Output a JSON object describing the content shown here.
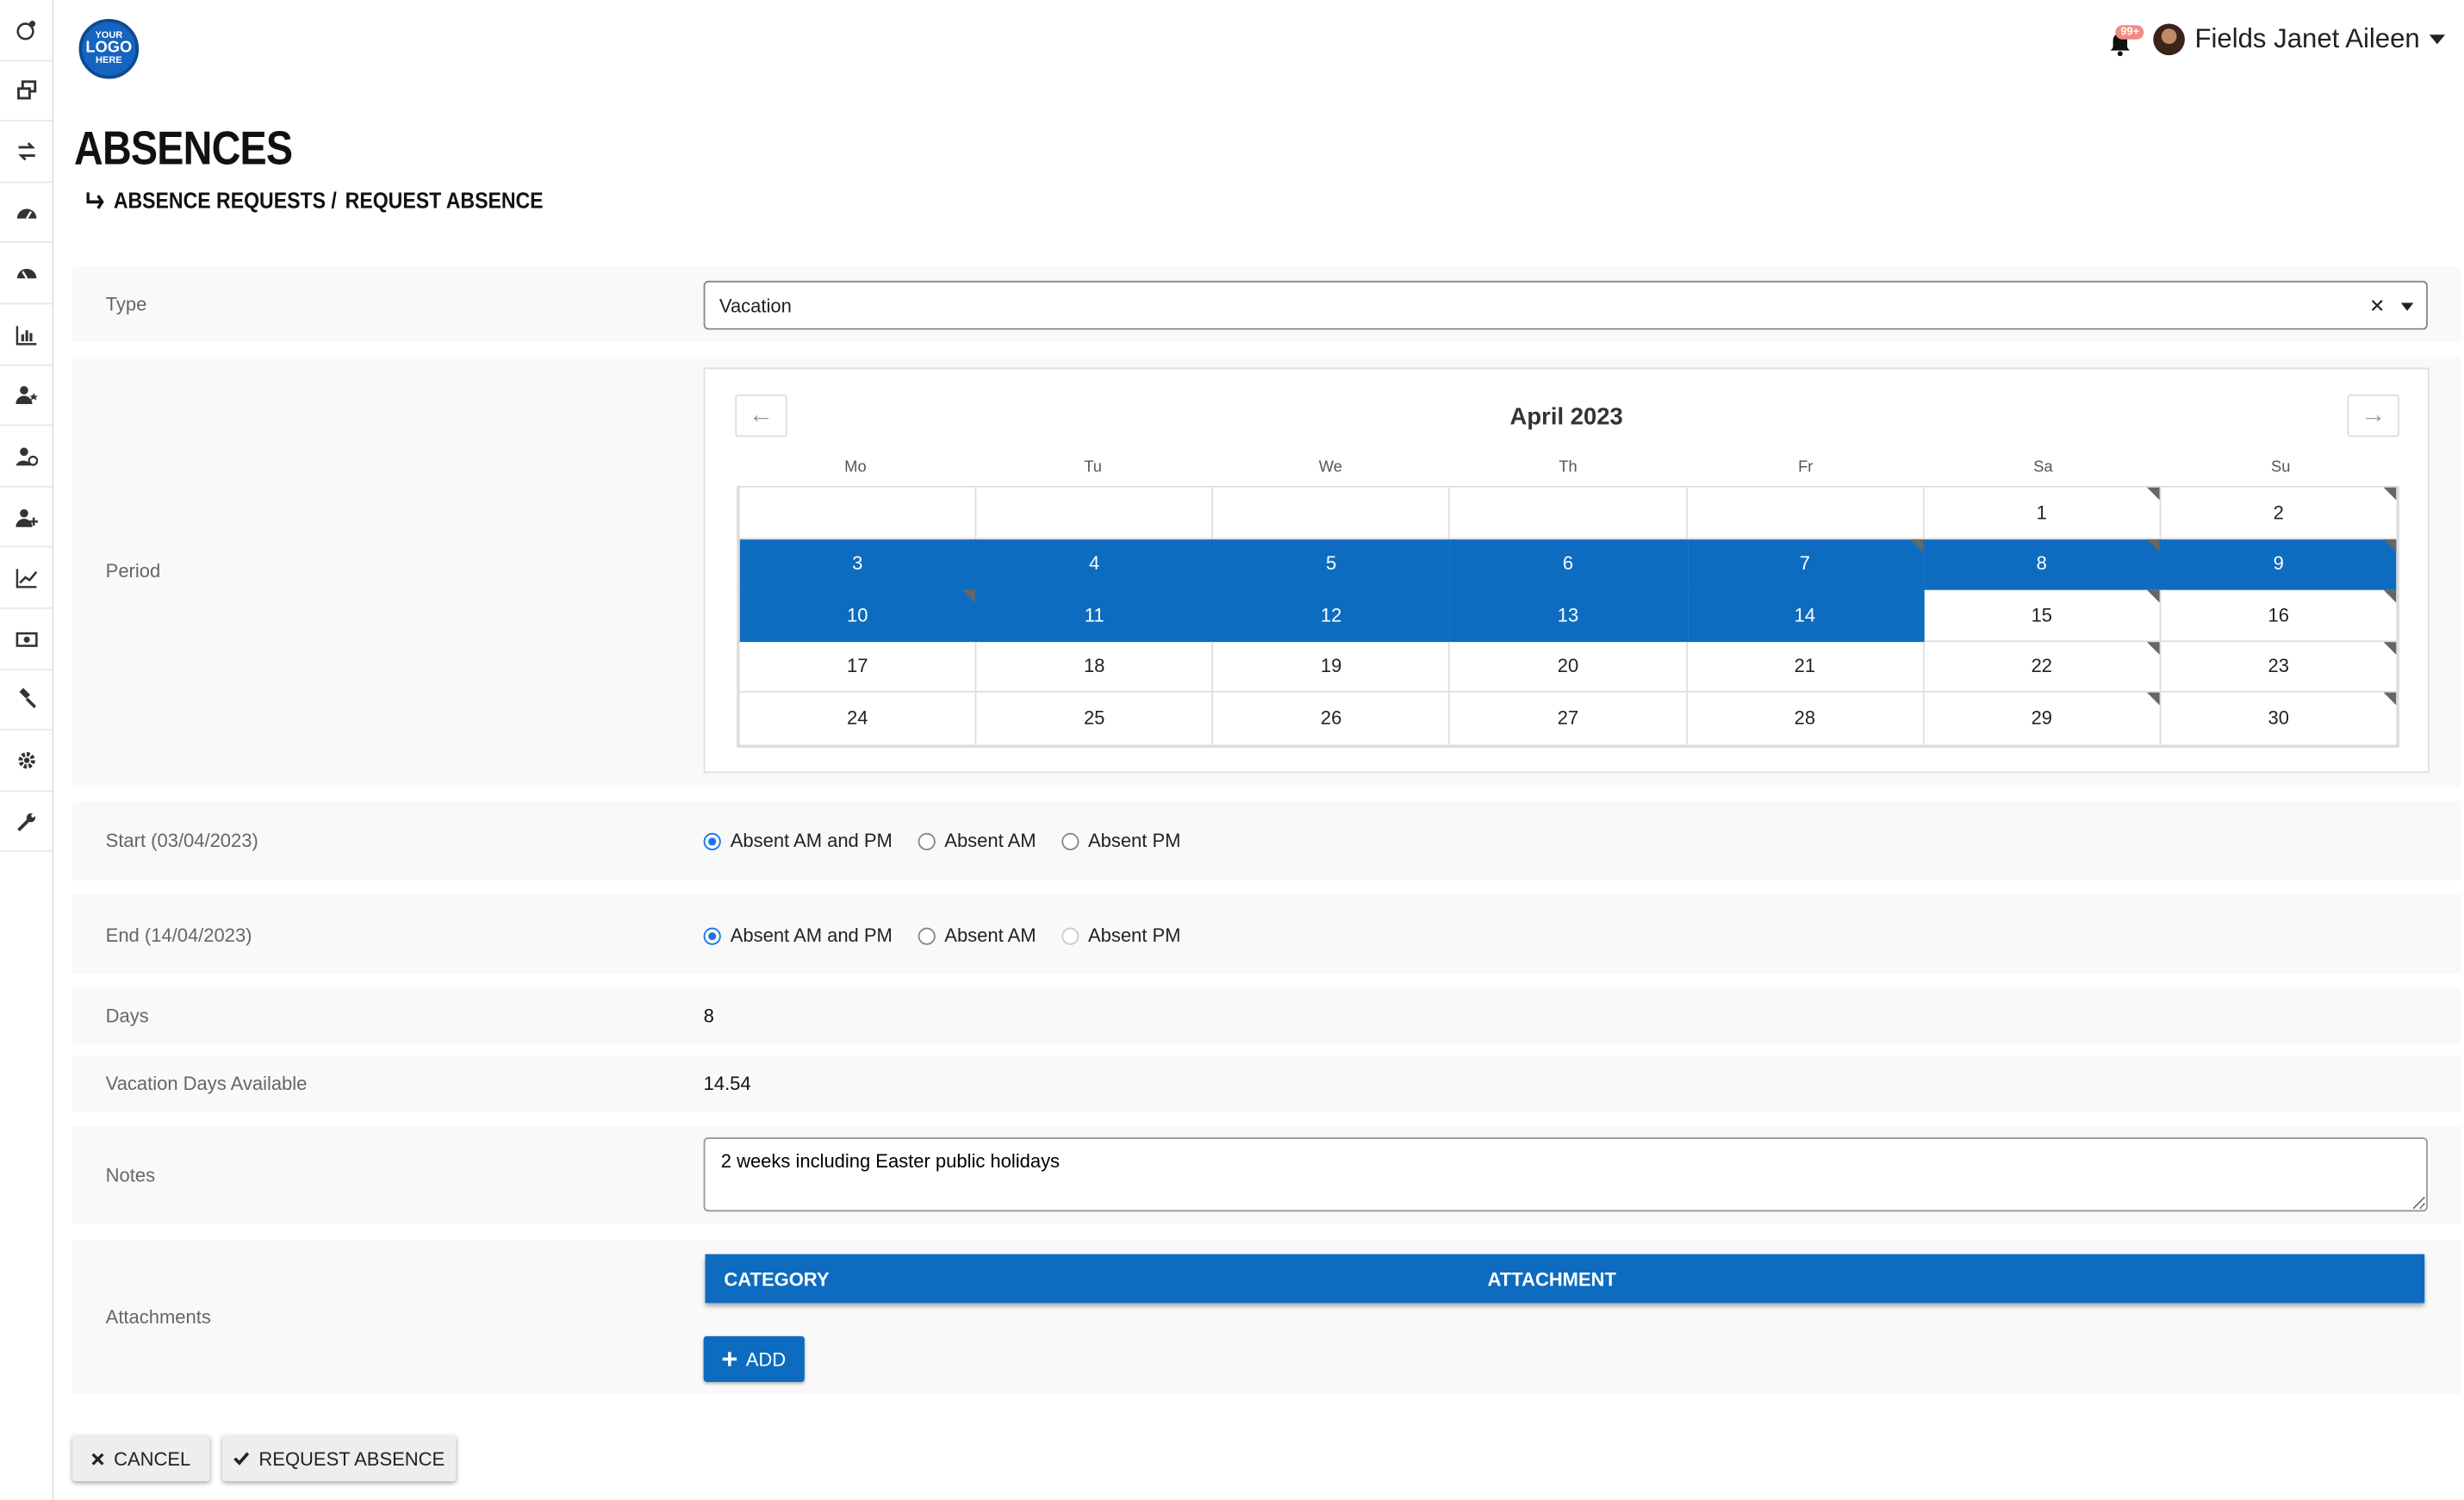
{
  "logo": {
    "line1": "YOUR",
    "line2": "LOGO",
    "line3": "HERE"
  },
  "header": {
    "notification_badge": "99+",
    "user_name": "Fields Janet Aileen"
  },
  "sidebar": {
    "icons": [
      "user-globe-icon",
      "windows-icon",
      "transfer-icon",
      "dashboard-icon",
      "dashboard-alt-icon",
      "bar-chart-icon",
      "user-star-icon",
      "user-clock-icon",
      "user-add-icon",
      "line-chart-icon",
      "money-icon",
      "gavel-icon",
      "gear-icon",
      "wrench-icon"
    ]
  },
  "page": {
    "title": "ABSENCES",
    "breadcrumb": [
      "ABSENCE REQUESTS /",
      "REQUEST ABSENCE"
    ]
  },
  "form": {
    "type": {
      "label": "Type",
      "value": "Vacation"
    },
    "period": {
      "label": "Period"
    },
    "start": {
      "label": "Start  (03/04/2023)",
      "options": [
        "Absent AM and PM",
        "Absent AM",
        "Absent PM"
      ],
      "selected": 0
    },
    "end": {
      "label": "End  (14/04/2023)",
      "options": [
        "Absent AM and PM",
        "Absent AM",
        "Absent PM"
      ],
      "selected": 0
    },
    "days": {
      "label": "Days",
      "value": "8"
    },
    "vacation_available": {
      "label": "Vacation Days Available",
      "value": "14.54"
    },
    "notes": {
      "label": "Notes",
      "value": "2 weeks including Easter public holidays"
    },
    "attachments": {
      "label": "Attachments",
      "columns": [
        "CATEGORY",
        "ATTACHMENT"
      ],
      "add_label": "ADD"
    }
  },
  "calendar": {
    "title": "April 2023",
    "prev": "←",
    "next": "→",
    "weekdays": [
      "Mo",
      "Tu",
      "We",
      "Th",
      "Fr",
      "Sa",
      "Su"
    ],
    "weeks": [
      [
        "",
        "",
        "",
        "",
        "",
        "1",
        "2"
      ],
      [
        "3",
        "4",
        "5",
        "6",
        "7",
        "8",
        "9"
      ],
      [
        "10",
        "11",
        "12",
        "13",
        "14",
        "15",
        "16"
      ],
      [
        "17",
        "18",
        "19",
        "20",
        "21",
        "22",
        "23"
      ],
      [
        "24",
        "25",
        "26",
        "27",
        "28",
        "29",
        "30"
      ]
    ],
    "selected_days": [
      "3",
      "4",
      "5",
      "6",
      "7",
      "8",
      "9",
      "10",
      "11",
      "12",
      "13",
      "14"
    ],
    "marked_days": [
      "1",
      "2",
      "7",
      "8",
      "9",
      "10",
      "15",
      "16",
      "22",
      "23",
      "29",
      "30"
    ],
    "accent_color": "#0d6cc0"
  },
  "actions": {
    "cancel": "CANCEL",
    "request": "REQUEST ABSENCE"
  }
}
